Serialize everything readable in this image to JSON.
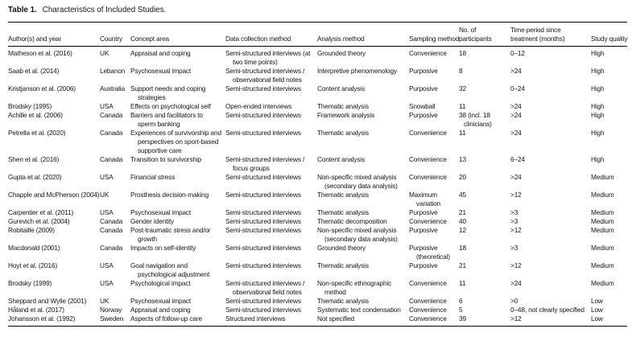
{
  "title": {
    "label": "Table 1.",
    "text": "Characteristics of Included Studies."
  },
  "table": {
    "columns": [
      "Author(s) and year",
      "Country",
      "Concept area",
      "Data collection method",
      "Analysis method",
      "Sampling method",
      "No. of participants",
      "Time period since treatment (months)",
      "Study quality"
    ],
    "rows": [
      [
        "Matheson et al. (2016)",
        "UK",
        "Appraisal and coping",
        "Semi-structured interviews (at two time points)",
        "Grounded theory",
        "Convenience",
        "18",
        "0–12",
        "High"
      ],
      [
        "Saab et al. (2014)",
        "Lebanon",
        "Psychosexual impact",
        "Semi-structured interviews / observational field notes",
        "Interpretive phenomenology",
        "Purposive",
        "8",
        ">24",
        "High"
      ],
      [
        "Kristjanson et al. (2006)",
        "Australia",
        "Support needs and coping strategies",
        "Semi-structured interviews",
        "Content analysis",
        "Purposive",
        "32",
        "0–24",
        "High"
      ],
      [
        "Brodsky (1995)",
        "USA",
        "Effects on psychological self",
        "Open-ended interviews",
        "Thematic analysis",
        "Snowball",
        "11",
        ">24",
        "High"
      ],
      [
        "Achille et al. (2006)",
        "Canada",
        "Barriers and facilitators to sperm banking",
        "Semi-structured interviews",
        "Framework analysis",
        "Purposive",
        "38 (incl. 18 clinicians)",
        ">24",
        "High"
      ],
      [
        "Petrella et al. (2020)",
        "Canada",
        "Experiences of survivorship and perspectives on sport-based supportive care",
        "Semi-structured interviews",
        "Thematic analysis",
        "Convenience",
        "11",
        ">24",
        "High"
      ],
      [
        "Shen et al. (2016)",
        "Canada",
        "Transition to survivorship",
        "Semi-structured interviews / focus groups",
        "Content analysis",
        "Convenience",
        "13",
        "6–24",
        "High"
      ],
      [
        "Gupta et al. (2020)",
        "USA",
        "Financial stress",
        "Semi-structured interviews",
        "Non-specific mixed analysis (secondary data analysis)",
        "Convenience",
        "20",
        ">24",
        "Medium"
      ],
      [
        "Chapple and McPherson (2004)",
        "UK",
        "Prosthesis decision-making",
        "Semi-structured interviews",
        "Thematic analysis",
        "Maximum variation",
        "45",
        ">12",
        "Medium"
      ],
      [
        "Carpentier et al. (2011)",
        "USA",
        "Psychosexual impact",
        "Semi-structured interviews",
        "Thematic analysis",
        "Purposive",
        "21",
        ">3",
        "Medium"
      ],
      [
        "Gurevich et al. (2004)",
        "Canada",
        "Gender identity",
        "Semi-structured interviews",
        "Thematic decomposition",
        "Convenience",
        "40",
        ">3",
        "Medium"
      ],
      [
        "Robitaille (2009)",
        "Canada",
        "Post-traumatic stress and/or growth",
        "Semi-structured interviews",
        "Non-specific mixed analysis (secondary data analysis)",
        "Purposive",
        "12",
        ">12",
        "Medium"
      ],
      [
        "Macdonald (2001)",
        "Canada",
        "Impacts on self-identity",
        "Semi-structured interviews",
        "Grounded theory",
        "Purposive (theoretical)",
        "18",
        ">3",
        "Medium"
      ],
      [
        "Hoyt et al. (2016)",
        "USA",
        "Goal navigation and psychological adjustment",
        "Semi-structured interviews",
        "Thematic analysis",
        "Purposive",
        "21",
        ">12",
        "Medium"
      ],
      [
        "Brodsky (1999)",
        "USA",
        "Psychological impact",
        "Semi-structured interviews / observational field notes",
        "Non-specific ethnographic method",
        "Convenience",
        "11",
        ">24",
        "Medium"
      ],
      [
        "Sheppard and Wylie (2001)",
        "UK",
        "Psychosexual impact",
        "Semi-structured interviews",
        "Thematic analysis",
        "Convenience",
        "6",
        ">0",
        "Low"
      ],
      [
        "Håland et al. (2017)",
        "Norway",
        "Appraisal and coping",
        "Semi-structured interviews",
        "Systematic text condensation",
        "Convenience",
        "5",
        "0–48, not clearly specified",
        "Low"
      ],
      [
        "Johansson et al. (1992)",
        "Sweden",
        "Aspects of follow-up care",
        "Structured interviews",
        "Not specified",
        "Convenience",
        "39",
        ">12",
        "Low"
      ]
    ]
  }
}
